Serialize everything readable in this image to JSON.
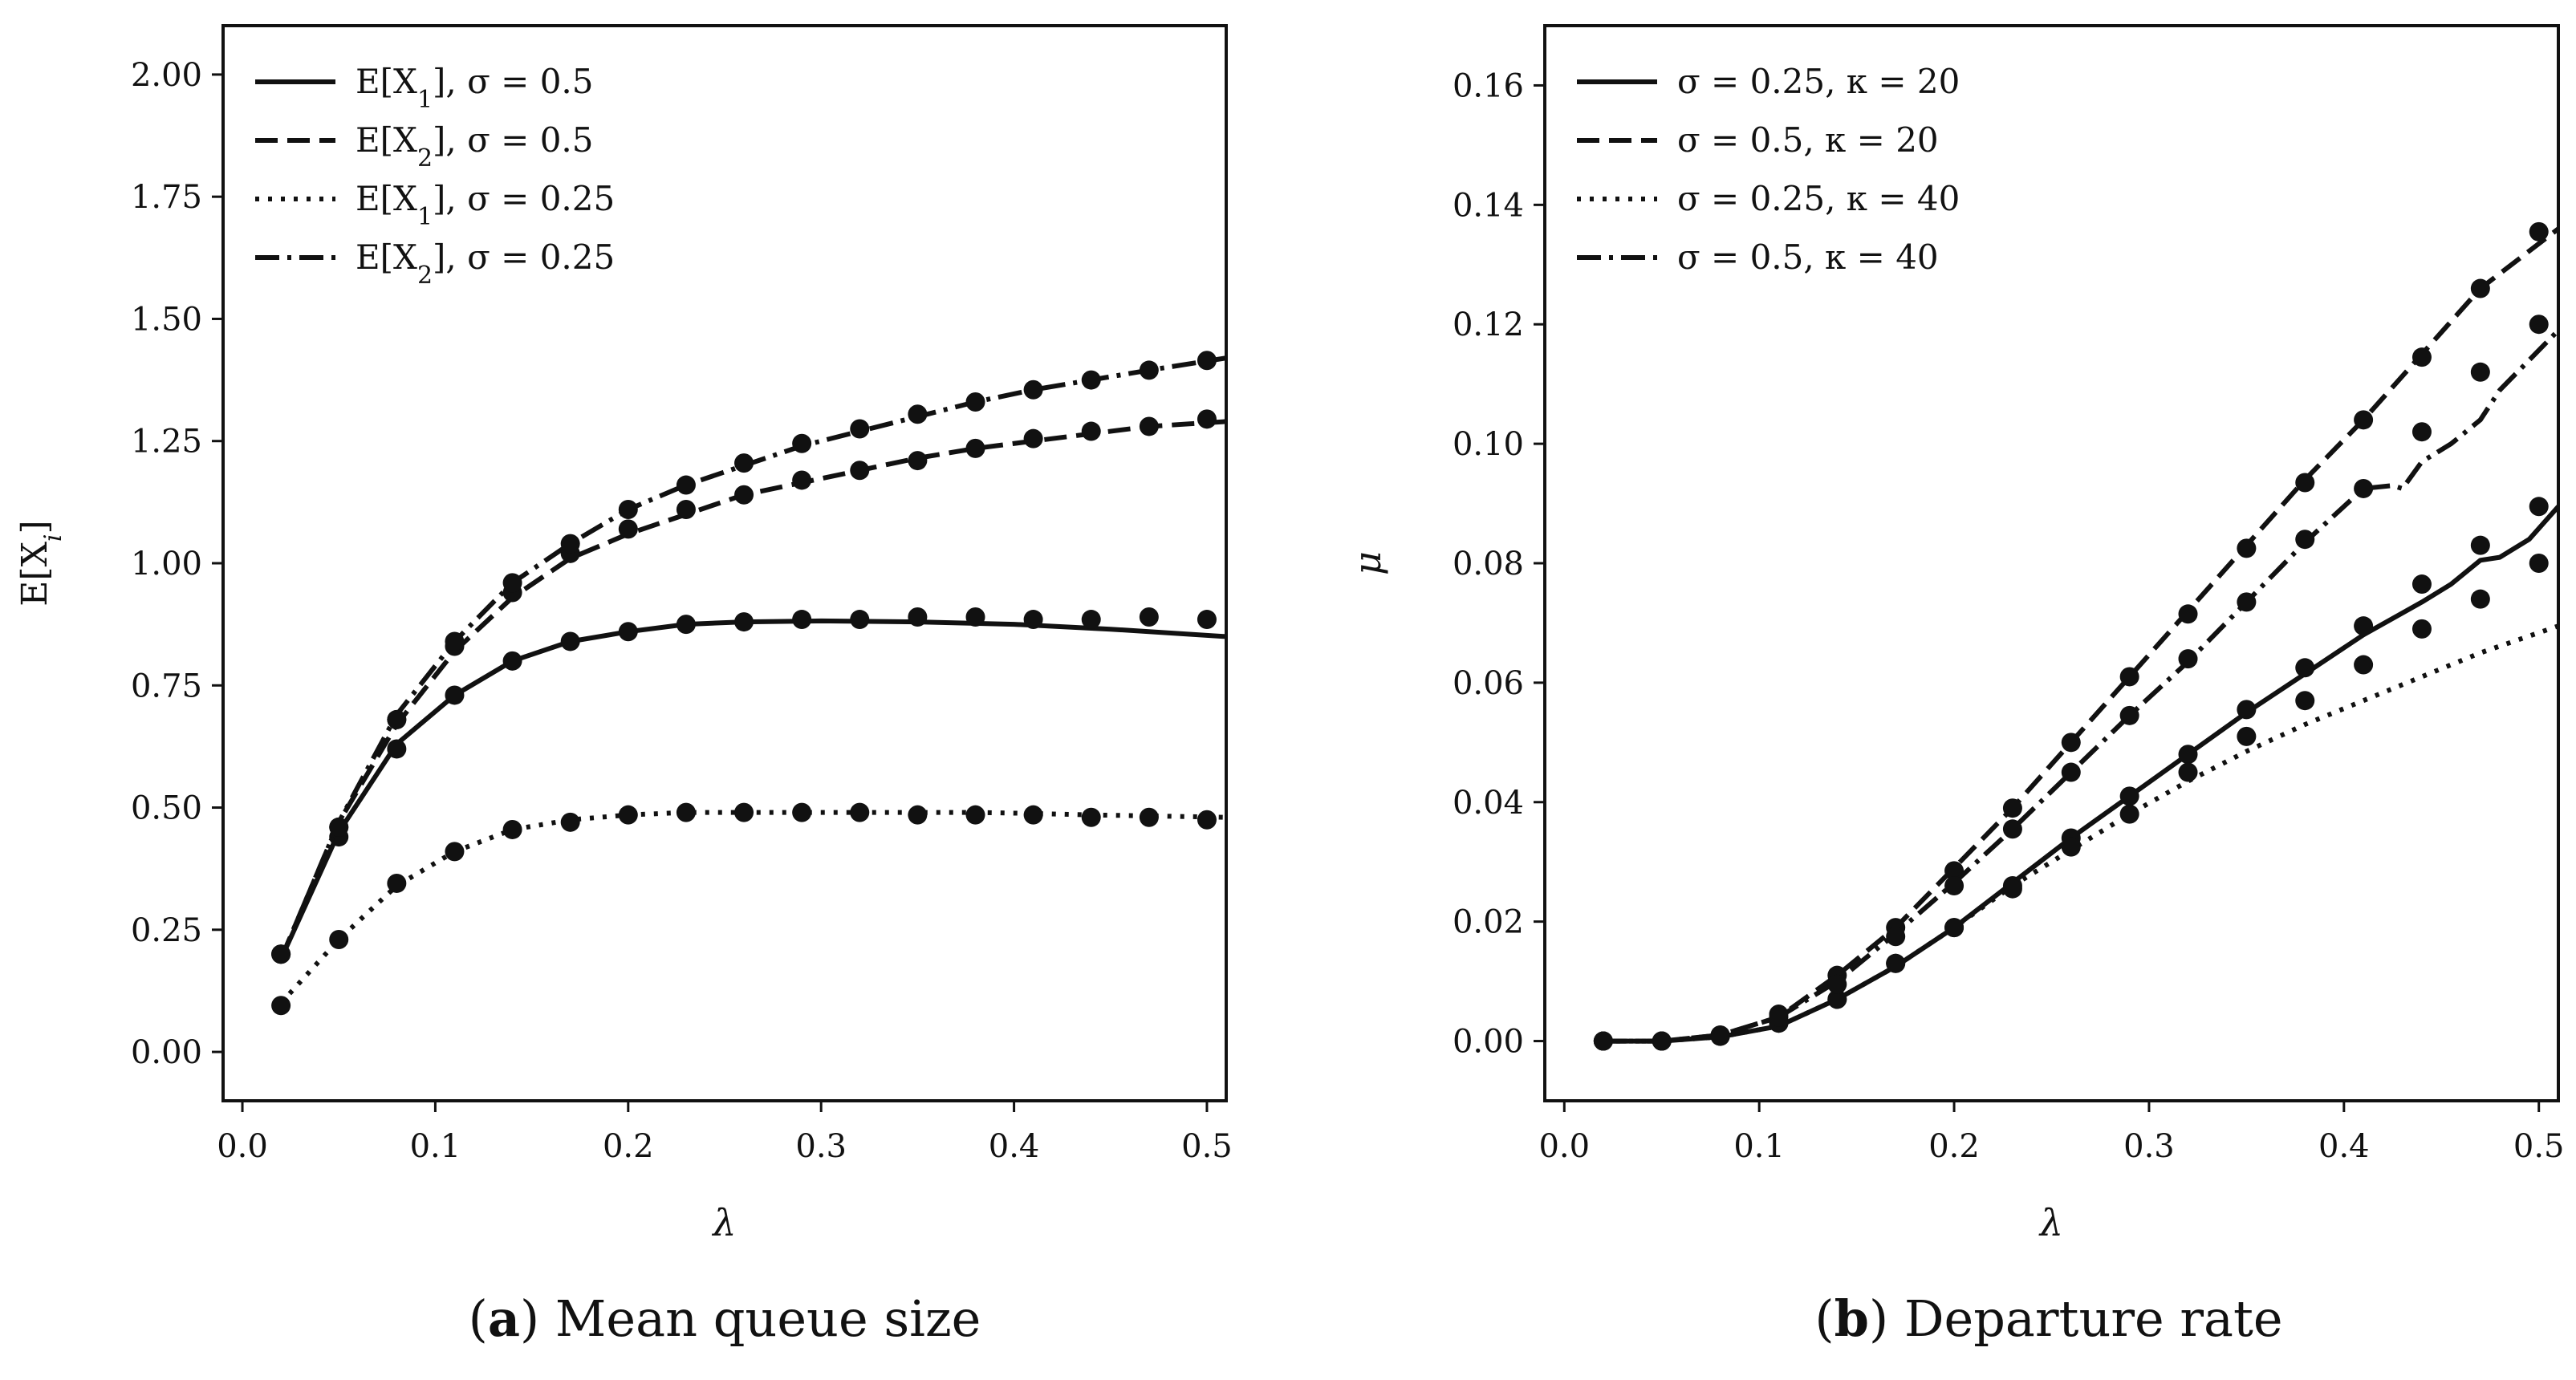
{
  "chart_data": [
    {
      "type": "line",
      "panel": "a",
      "caption_letter": "a",
      "caption_text": "Mean queue size",
      "xlabel": "λ",
      "ylabel": "E[X_i]",
      "ylabel_main": "E[X",
      "ylabel_sub": "i",
      "ylabel_close": "]",
      "xlim": [
        -0.01,
        0.51
      ],
      "ylim": [
        -0.1,
        2.1
      ],
      "xticks": [
        0.0,
        0.1,
        0.2,
        0.3,
        0.4,
        0.5
      ],
      "xtick_labels": [
        "0.0",
        "0.1",
        "0.2",
        "0.3",
        "0.4",
        "0.5"
      ],
      "yticks": [
        0.0,
        0.25,
        0.5,
        0.75,
        1.0,
        1.25,
        1.5,
        1.75,
        2.0
      ],
      "ytick_labels": [
        "0.00",
        "0.25",
        "0.50",
        "0.75",
        "1.00",
        "1.25",
        "1.50",
        "1.75",
        "2.00"
      ],
      "legend_position": "upper-left",
      "series": [
        {
          "name": "E[X_1], σ = 0.5",
          "legend_pre": "E[X",
          "legend_sub": "1",
          "legend_post": "], σ = 0.5",
          "style": "solid",
          "line": {
            "x": [
              0.02,
              0.05,
              0.08,
              0.11,
              0.14,
              0.17,
              0.2,
              0.23,
              0.26,
              0.3,
              0.35,
              0.4,
              0.45,
              0.51
            ],
            "y": [
              0.19,
              0.45,
              0.63,
              0.73,
              0.8,
              0.84,
              0.86,
              0.875,
              0.88,
              0.882,
              0.88,
              0.875,
              0.865,
              0.85
            ]
          },
          "points": {
            "x": [
              0.02,
              0.05,
              0.08,
              0.11,
              0.14,
              0.17,
              0.2,
              0.23,
              0.26,
              0.29,
              0.32,
              0.35,
              0.38,
              0.41,
              0.44,
              0.47,
              0.5
            ],
            "y": [
              0.2,
              0.44,
              0.62,
              0.73,
              0.8,
              0.84,
              0.86,
              0.875,
              0.88,
              0.885,
              0.885,
              0.89,
              0.89,
              0.885,
              0.885,
              0.89,
              0.885
            ]
          }
        },
        {
          "name": "E[X_2], σ = 0.5",
          "legend_pre": "E[X",
          "legend_sub": "2",
          "legend_post": "], σ = 0.5",
          "style": "dashed",
          "line": {
            "x": [
              0.02,
              0.05,
              0.08,
              0.11,
              0.14,
              0.17,
              0.2,
              0.23,
              0.26,
              0.29,
              0.32,
              0.35,
              0.38,
              0.41,
              0.44,
              0.47,
              0.51
            ],
            "y": [
              0.19,
              0.47,
              0.67,
              0.82,
              0.93,
              1.01,
              1.06,
              1.1,
              1.14,
              1.165,
              1.19,
              1.215,
              1.235,
              1.25,
              1.265,
              1.28,
              1.29
            ]
          },
          "points": {
            "x": [
              0.02,
              0.05,
              0.08,
              0.11,
              0.14,
              0.17,
              0.2,
              0.23,
              0.26,
              0.29,
              0.32,
              0.35,
              0.38,
              0.41,
              0.44,
              0.47,
              0.5
            ],
            "y": [
              0.2,
              0.46,
              0.68,
              0.83,
              0.94,
              1.02,
              1.07,
              1.11,
              1.14,
              1.17,
              1.19,
              1.21,
              1.235,
              1.255,
              1.27,
              1.28,
              1.295
            ]
          }
        },
        {
          "name": "E[X_1], σ = 0.25",
          "legend_pre": "E[X",
          "legend_sub": "1",
          "legend_post": "], σ = 0.25",
          "style": "dotted",
          "line": {
            "x": [
              0.02,
              0.05,
              0.08,
              0.11,
              0.14,
              0.17,
              0.2,
              0.23,
              0.26,
              0.29,
              0.32,
              0.35,
              0.38,
              0.41,
              0.44,
              0.47,
              0.51
            ],
            "y": [
              0.1,
              0.23,
              0.34,
              0.41,
              0.455,
              0.475,
              0.485,
              0.49,
              0.49,
              0.49,
              0.49,
              0.49,
              0.49,
              0.488,
              0.485,
              0.483,
              0.48
            ]
          },
          "points": {
            "x": [
              0.02,
              0.05,
              0.08,
              0.11,
              0.14,
              0.17,
              0.2,
              0.23,
              0.26,
              0.29,
              0.32,
              0.35,
              0.38,
              0.41,
              0.44,
              0.47,
              0.5
            ],
            "y": [
              0.095,
              0.23,
              0.345,
              0.41,
              0.455,
              0.47,
              0.485,
              0.49,
              0.49,
              0.49,
              0.49,
              0.485,
              0.485,
              0.485,
              0.48,
              0.48,
              0.475
            ]
          }
        },
        {
          "name": "E[X_2], σ = 0.25",
          "legend_pre": "E[X",
          "legend_sub": "2",
          "legend_post": "], σ = 0.25",
          "style": "dashdot",
          "line": {
            "x": [
              0.02,
              0.05,
              0.08,
              0.11,
              0.14,
              0.17,
              0.2,
              0.23,
              0.26,
              0.29,
              0.32,
              0.35,
              0.38,
              0.41,
              0.44,
              0.47,
              0.51
            ],
            "y": [
              0.19,
              0.47,
              0.69,
              0.84,
              0.96,
              1.04,
              1.11,
              1.16,
              1.2,
              1.24,
              1.27,
              1.3,
              1.33,
              1.355,
              1.375,
              1.395,
              1.42
            ]
          },
          "points": {
            "x": [
              0.02,
              0.05,
              0.08,
              0.11,
              0.14,
              0.17,
              0.2,
              0.23,
              0.26,
              0.29,
              0.32,
              0.35,
              0.38,
              0.41,
              0.44,
              0.47,
              0.5
            ],
            "y": [
              0.2,
              0.46,
              0.68,
              0.84,
              0.96,
              1.04,
              1.11,
              1.16,
              1.205,
              1.245,
              1.275,
              1.305,
              1.33,
              1.355,
              1.375,
              1.395,
              1.415
            ]
          }
        }
      ]
    },
    {
      "type": "line",
      "panel": "b",
      "caption_letter": "b",
      "caption_text": "Departure rate",
      "xlabel": "λ",
      "ylabel": "μ",
      "xlim": [
        -0.01,
        0.51
      ],
      "ylim": [
        -0.01,
        0.17
      ],
      "xticks": [
        0.0,
        0.1,
        0.2,
        0.3,
        0.4,
        0.5
      ],
      "xtick_labels": [
        "0.0",
        "0.1",
        "0.2",
        "0.3",
        "0.4",
        "0.5"
      ],
      "yticks": [
        0.0,
        0.02,
        0.04,
        0.06,
        0.08,
        0.1,
        0.12,
        0.14,
        0.16
      ],
      "ytick_labels": [
        "0.00",
        "0.02",
        "0.04",
        "0.06",
        "0.08",
        "0.10",
        "0.12",
        "0.14",
        "0.16"
      ],
      "legend_position": "upper-left",
      "series": [
        {
          "name": "σ = 0.25, κ = 20",
          "legend_pre": "σ = 0.25, κ = 20",
          "legend_sub": "",
          "legend_post": "",
          "style": "solid",
          "line": {
            "x": [
              0.02,
              0.05,
              0.08,
              0.11,
              0.14,
              0.17,
              0.2,
              0.23,
              0.26,
              0.29,
              0.32,
              0.35,
              0.38,
              0.41,
              0.44,
              0.455,
              0.47,
              0.48,
              0.495,
              0.51
            ],
            "y": [
              0.0,
              0.0,
              0.0007,
              0.0025,
              0.007,
              0.0125,
              0.019,
              0.0265,
              0.034,
              0.041,
              0.048,
              0.055,
              0.0615,
              0.068,
              0.0735,
              0.0765,
              0.0805,
              0.081,
              0.084,
              0.0895
            ]
          },
          "points": {
            "x": [
              0.02,
              0.05,
              0.08,
              0.11,
              0.14,
              0.17,
              0.2,
              0.23,
              0.26,
              0.29,
              0.32,
              0.35,
              0.38,
              0.41,
              0.44,
              0.47,
              0.5
            ],
            "y": [
              0.0,
              0.0,
              0.0008,
              0.003,
              0.007,
              0.013,
              0.019,
              0.026,
              0.034,
              0.041,
              0.048,
              0.0555,
              0.0625,
              0.0695,
              0.0765,
              0.083,
              0.0895
            ]
          }
        },
        {
          "name": "σ = 0.5, κ = 20",
          "legend_pre": "σ = 0.5, κ = 20",
          "legend_sub": "",
          "legend_post": "",
          "style": "dashed",
          "line": {
            "x": [
              0.02,
              0.05,
              0.08,
              0.11,
              0.14,
              0.17,
              0.2,
              0.23,
              0.26,
              0.29,
              0.32,
              0.35,
              0.38,
              0.41,
              0.44,
              0.47,
              0.51
            ],
            "y": [
              0.0,
              0.0,
              0.001,
              0.004,
              0.011,
              0.019,
              0.029,
              0.039,
              0.05,
              0.061,
              0.072,
              0.083,
              0.094,
              0.104,
              0.115,
              0.126,
              0.136
            ]
          },
          "points": {
            "x": [
              0.02,
              0.05,
              0.08,
              0.11,
              0.14,
              0.17,
              0.2,
              0.23,
              0.26,
              0.29,
              0.32,
              0.35,
              0.38,
              0.41,
              0.44,
              0.47,
              0.5
            ],
            "y": [
              0.0,
              0.0,
              0.001,
              0.0045,
              0.011,
              0.019,
              0.0285,
              0.039,
              0.05,
              0.061,
              0.0715,
              0.0825,
              0.0935,
              0.104,
              0.1145,
              0.126,
              0.1355
            ]
          }
        },
        {
          "name": "σ = 0.25, κ = 40",
          "legend_pre": "σ = 0.25, κ = 40",
          "legend_sub": "",
          "legend_post": "",
          "style": "dotted",
          "line": {
            "x": [
              0.02,
              0.05,
              0.08,
              0.11,
              0.14,
              0.17,
              0.2,
              0.23,
              0.26,
              0.29,
              0.32,
              0.35,
              0.38,
              0.41,
              0.44,
              0.47,
              0.51
            ],
            "y": [
              0.0,
              0.0,
              0.0007,
              0.0025,
              0.007,
              0.0125,
              0.019,
              0.026,
              0.032,
              0.038,
              0.0435,
              0.0485,
              0.053,
              0.057,
              0.061,
              0.065,
              0.0695
            ]
          },
          "points": {
            "x": [
              0.02,
              0.05,
              0.08,
              0.11,
              0.14,
              0.17,
              0.2,
              0.23,
              0.26,
              0.29,
              0.32,
              0.35,
              0.38,
              0.41,
              0.44,
              0.47,
              0.5
            ],
            "y": [
              0.0,
              0.0,
              0.0008,
              0.003,
              0.007,
              0.013,
              0.019,
              0.0255,
              0.0325,
              0.038,
              0.045,
              0.051,
              0.057,
              0.063,
              0.069,
              0.074,
              0.08
            ]
          }
        },
        {
          "name": "σ = 0.5, κ = 40",
          "legend_pre": "σ = 0.5, κ = 40",
          "legend_sub": "",
          "legend_post": "",
          "style": "dashdot",
          "line": {
            "x": [
              0.02,
              0.05,
              0.08,
              0.11,
              0.14,
              0.17,
              0.2,
              0.23,
              0.26,
              0.29,
              0.32,
              0.35,
              0.38,
              0.41,
              0.425,
              0.43,
              0.44,
              0.455,
              0.47,
              0.48,
              0.495,
              0.51
            ],
            "y": [
              0.0,
              0.0,
              0.001,
              0.004,
              0.01,
              0.018,
              0.0265,
              0.0355,
              0.045,
              0.0545,
              0.0635,
              0.0735,
              0.0835,
              0.0925,
              0.093,
              0.0925,
              0.097,
              0.1,
              0.104,
              0.109,
              0.114,
              0.119
            ]
          },
          "points": {
            "x": [
              0.02,
              0.05,
              0.08,
              0.11,
              0.14,
              0.17,
              0.2,
              0.23,
              0.26,
              0.29,
              0.32,
              0.35,
              0.38,
              0.41,
              0.44,
              0.47,
              0.5
            ],
            "y": [
              0.0,
              0.0,
              0.001,
              0.004,
              0.0095,
              0.0175,
              0.026,
              0.0355,
              0.045,
              0.0545,
              0.064,
              0.0735,
              0.084,
              0.0925,
              0.102,
              0.112,
              0.12
            ]
          }
        }
      ]
    }
  ]
}
